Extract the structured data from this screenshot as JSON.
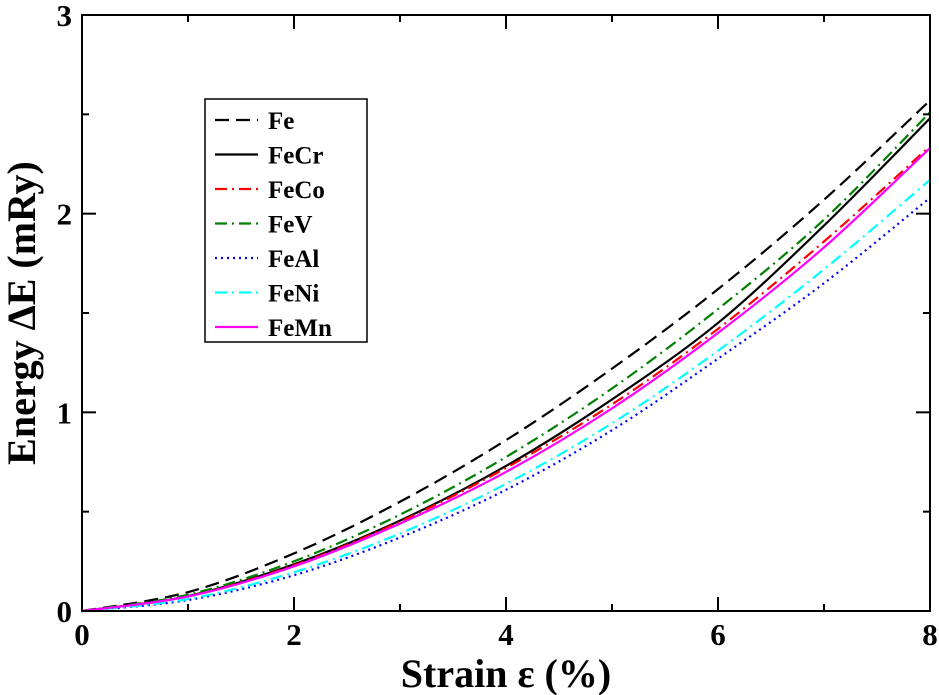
{
  "chart_data": {
    "type": "line",
    "title": "",
    "xlabel": "Strain ε (%)",
    "ylabel": "Energy ΔE (mRy)",
    "xlim": [
      0,
      8
    ],
    "ylim": [
      0,
      3
    ],
    "xticks": [
      0,
      2,
      4,
      6,
      8
    ],
    "xtick_labels": [
      "0",
      "2",
      "4",
      "6",
      "8"
    ],
    "yticks": [
      0,
      1,
      2,
      3
    ],
    "ytick_labels": [
      "0",
      "1",
      "2",
      "3"
    ],
    "grid": false,
    "legend_position": "top-left",
    "x": [
      0,
      1,
      2,
      3,
      4,
      5,
      6,
      7,
      8
    ],
    "series": [
      {
        "name": "Fe",
        "color": "#000000",
        "dash": "dashed",
        "values": [
          0,
          0.095,
          0.29,
          0.55,
          0.86,
          1.22,
          1.62,
          2.07,
          2.57
        ]
      },
      {
        "name": "FeCr",
        "color": "#000000",
        "dash": "solid",
        "values": [
          0,
          0.075,
          0.235,
          0.455,
          0.73,
          1.065,
          1.45,
          1.94,
          2.48
        ]
      },
      {
        "name": "FeCo",
        "color": "#ff0000",
        "dash": "dash-dot",
        "values": [
          0,
          0.075,
          0.23,
          0.45,
          0.72,
          1.04,
          1.42,
          1.86,
          2.34
        ]
      },
      {
        "name": "FeV",
        "color": "#008000",
        "dash": "dash-dot",
        "values": [
          0,
          0.082,
          0.25,
          0.485,
          0.775,
          1.12,
          1.52,
          1.97,
          2.51
        ]
      },
      {
        "name": "FeAl",
        "color": "#0000ff",
        "dash": "dotted",
        "values": [
          0,
          0.055,
          0.18,
          0.37,
          0.61,
          0.91,
          1.27,
          1.65,
          2.08
        ]
      },
      {
        "name": "FeNi",
        "color": "#00ffff",
        "dash": "dash-dot",
        "values": [
          0,
          0.06,
          0.195,
          0.39,
          0.64,
          0.945,
          1.31,
          1.72,
          2.17
        ]
      },
      {
        "name": "FeMn",
        "color": "#ff00ff",
        "dash": "solid",
        "values": [
          0,
          0.073,
          0.225,
          0.44,
          0.7,
          1.02,
          1.4,
          1.83,
          2.33
        ]
      }
    ]
  }
}
